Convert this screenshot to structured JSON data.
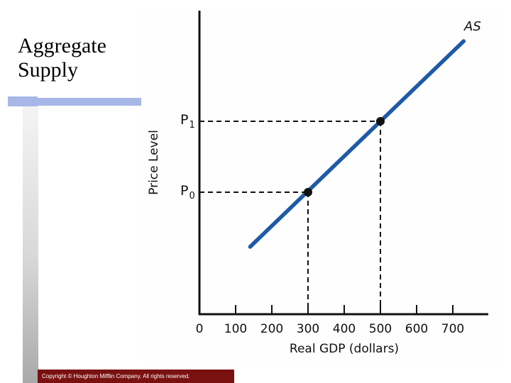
{
  "slide": {
    "title_line1": "Aggregate",
    "title_line2": "Supply",
    "copyright": "Copyright © Houghton Mifflin Company. All rights reserved."
  },
  "colors": {
    "accent_blue": "#a7b7e8",
    "curve": "#1f5aa6",
    "footer": "#7a1111"
  },
  "chart_data": {
    "type": "line",
    "title": "",
    "xlabel": "Real GDP (dollars)",
    "ylabel": "Price Level",
    "xlim": [
      0,
      800
    ],
    "ylim": [
      0,
      4.25
    ],
    "x_ticks": [
      0,
      100,
      200,
      300,
      400,
      500,
      600,
      700
    ],
    "x_tick_labels": [
      "0",
      "100",
      "200",
      "300",
      "400",
      "500",
      "600",
      "700"
    ],
    "series": [
      {
        "name": "AS",
        "x": [
          140,
          730
        ],
        "y": [
          0.95,
          3.85
        ]
      }
    ],
    "points": [
      {
        "label": "P",
        "sub": "0",
        "x": 300,
        "y": 1.72
      },
      {
        "label": "P",
        "sub": "1",
        "x": 500,
        "y": 2.72
      }
    ]
  }
}
